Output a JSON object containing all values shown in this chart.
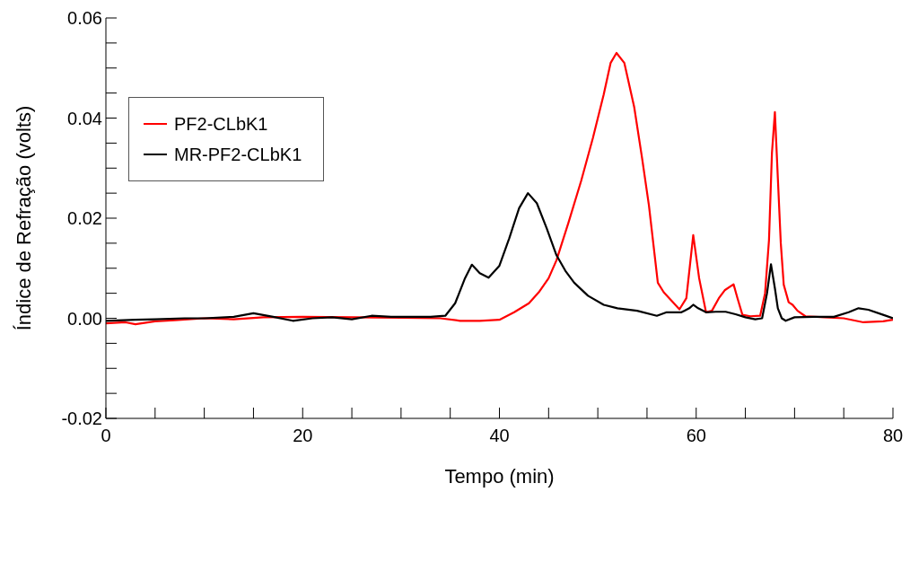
{
  "chart_data": {
    "type": "line",
    "xlabel": "Tempo (min)",
    "ylabel": "Índice de Refração (volts)",
    "xlim": [
      0,
      80
    ],
    "ylim": [
      -0.02,
      0.06
    ],
    "xticks": [
      0,
      {
        "value": 5,
        "label": null
      },
      {
        "value": 10,
        "label": null
      },
      {
        "value": 15,
        "label": null
      },
      20,
      {
        "value": 25,
        "label": null
      },
      {
        "value": 30,
        "label": null
      },
      {
        "value": 35,
        "label": null
      },
      40,
      {
        "value": 45,
        "label": null
      },
      {
        "value": 50,
        "label": null
      },
      {
        "value": 55,
        "label": null
      },
      60,
      {
        "value": 65,
        "label": null
      },
      {
        "value": 70,
        "label": null
      },
      {
        "value": 75,
        "label": null
      },
      80
    ],
    "yticks": [
      {
        "value": -0.02,
        "label": "-0.02"
      },
      {
        "value": -0.015,
        "label": null
      },
      {
        "value": -0.01,
        "label": null
      },
      {
        "value": -0.005,
        "label": null
      },
      {
        "value": 0,
        "label": "0.00"
      },
      {
        "value": 0.005,
        "label": null
      },
      {
        "value": 0.01,
        "label": null
      },
      {
        "value": 0.015,
        "label": null
      },
      {
        "value": 0.02,
        "label": "0.02"
      },
      {
        "value": 0.025,
        "label": null
      },
      {
        "value": 0.03,
        "label": null
      },
      {
        "value": 0.035,
        "label": null
      },
      {
        "value": 0.04,
        "label": "0.04"
      },
      {
        "value": 0.045,
        "label": null
      },
      {
        "value": 0.05,
        "label": null
      },
      {
        "value": 0.055,
        "label": null
      },
      {
        "value": 0.06,
        "label": "0.06"
      }
    ],
    "legend": "top left",
    "marker": "none",
    "line_style": "solid",
    "series": [
      {
        "name": "PF2-CLbK1",
        "color": "#ff0000",
        "x": [
          0,
          2,
          3,
          5,
          7,
          10,
          13,
          16,
          20,
          25,
          30,
          34,
          36,
          38,
          40,
          41.5,
          43,
          44,
          45,
          45.8,
          47,
          48.3,
          49.5,
          50.6,
          51.3,
          51.9,
          52.7,
          53.7,
          54.5,
          55.2,
          56.1,
          56.7,
          57.5,
          58.3,
          59,
          59.7,
          60.3,
          61,
          61.6,
          62.3,
          62.9,
          63.8,
          64.2,
          64.7,
          65.5,
          66.5,
          67,
          67.4,
          67.7,
          68,
          68.3,
          68.6,
          68.9,
          69.4,
          69.8,
          70.3,
          71.1,
          73,
          75,
          77,
          79,
          80
        ],
        "values": [
          -0.001,
          -0.0008,
          -0.0012,
          -0.0006,
          -0.0004,
          0,
          -0.0002,
          0.0002,
          0.0003,
          0.0002,
          0.0001,
          0,
          -0.0005,
          -0.0005,
          -0.0003,
          0.0012,
          0.003,
          0.0052,
          0.008,
          0.0116,
          0.019,
          0.0274,
          0.036,
          0.0447,
          0.051,
          0.053,
          0.051,
          0.0422,
          0.032,
          0.0225,
          0.0071,
          0.0052,
          0.0035,
          0.0018,
          0.004,
          0.0166,
          0.008,
          0.0012,
          0.0015,
          0.004,
          0.0056,
          0.0068,
          0.004,
          0.0007,
          0.0004,
          0.0005,
          0.005,
          0.0156,
          0.033,
          0.0412,
          0.028,
          0.015,
          0.0067,
          0.0032,
          0.0027,
          0.0015,
          0.0004,
          0.0002,
          0,
          -0.0008,
          -0.0006,
          -0.0003
        ]
      },
      {
        "name": "MR-PF2-CLbK1",
        "color": "#000000",
        "x": [
          0,
          3,
          5,
          8,
          10,
          13,
          15,
          17,
          19,
          21,
          23,
          25,
          27,
          29,
          31,
          33,
          34.5,
          35.5,
          36.5,
          37.2,
          38,
          38.9,
          40,
          41,
          42,
          42.9,
          43.8,
          44.8,
          45.8,
          46.7,
          47.6,
          49,
          50.6,
          52,
          54,
          56,
          57,
          58.5,
          59.3,
          59.7,
          60.2,
          61,
          62,
          63,
          64,
          65,
          66,
          66.7,
          67.2,
          67.6,
          68,
          68.3,
          68.7,
          69.1,
          70,
          72,
          74,
          75.5,
          76.5,
          77.5,
          79,
          80
        ],
        "values": [
          -0.0005,
          -0.0003,
          -0.0002,
          0,
          0,
          0.0003,
          0.001,
          0.0003,
          -0.0005,
          0,
          0.0002,
          -0.0002,
          0.0005,
          0.0003,
          0.0003,
          0.0003,
          0.0005,
          0.003,
          0.008,
          0.0107,
          0.009,
          0.0081,
          0.0105,
          0.016,
          0.022,
          0.025,
          0.023,
          0.018,
          0.0126,
          0.0095,
          0.0071,
          0.0045,
          0.0027,
          0.002,
          0.0015,
          0.0005,
          0.0012,
          0.0012,
          0.002,
          0.0027,
          0.002,
          0.0012,
          0.0013,
          0.0013,
          0.0008,
          0.0002,
          -0.0002,
          0,
          0.005,
          0.0108,
          0.006,
          0.002,
          0,
          -0.0005,
          0.0002,
          0.0003,
          0.0003,
          0.0012,
          0.002,
          0.0017,
          0.0007,
          0
        ]
      }
    ]
  }
}
